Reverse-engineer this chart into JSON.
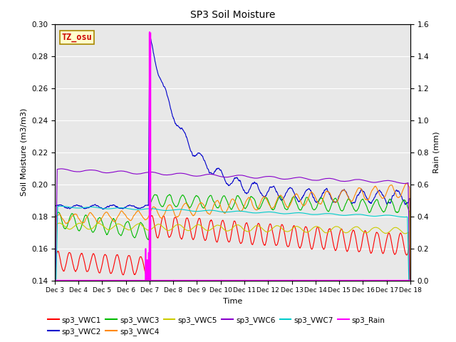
{
  "title": "SP3 Soil Moisture",
  "xlabel": "Time",
  "ylabel_left": "Soil Moisture (m3/m3)",
  "ylabel_right": "Rain (mm)",
  "xlim": [
    0,
    360
  ],
  "ylim_left": [
    0.14,
    0.3
  ],
  "ylim_right": [
    0.0,
    1.6
  ],
  "x_tick_labels": [
    "Dec 3",
    "Dec 4",
    "Dec 5",
    "Dec 6",
    "Dec 7",
    "Dec 8",
    "Dec 9",
    "Dec 10",
    "Dec 11",
    "Dec 12",
    "Dec 13",
    "Dec 14",
    "Dec 15",
    "Dec 16",
    "Dec 17",
    "Dec 18"
  ],
  "x_tick_positions": [
    0,
    24,
    48,
    72,
    96,
    120,
    144,
    168,
    192,
    216,
    240,
    264,
    288,
    312,
    336,
    360
  ],
  "annotation_text": "TZ_osu",
  "annotation_bg": "#ffffcc",
  "annotation_fg": "#cc0000",
  "series_colors": {
    "sp3_VWC1": "#ff0000",
    "sp3_VWC2": "#0000cc",
    "sp3_VWC3": "#00bb00",
    "sp3_VWC4": "#ff8800",
    "sp3_VWC5": "#cccc00",
    "sp3_VWC6": "#8800cc",
    "sp3_VWC7": "#00cccc",
    "sp3_Rain": "#ff00ff"
  },
  "background_color": "#e8e8e8",
  "grid_color": "#ffffff"
}
